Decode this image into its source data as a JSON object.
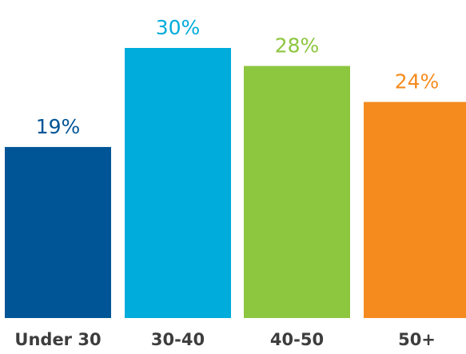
{
  "chart_data": {
    "type": "bar",
    "categories": [
      "Under 30",
      "30-40",
      "40-50",
      "50+"
    ],
    "values": [
      19,
      30,
      28,
      24
    ],
    "value_labels": [
      "19%",
      "30%",
      "28%",
      "24%"
    ],
    "unit": "%",
    "ylim": [
      0,
      30
    ],
    "grid": false,
    "legend": "none",
    "colors": [
      "#005596",
      "#00acdb",
      "#8dc63f",
      "#f58b1f"
    ]
  }
}
